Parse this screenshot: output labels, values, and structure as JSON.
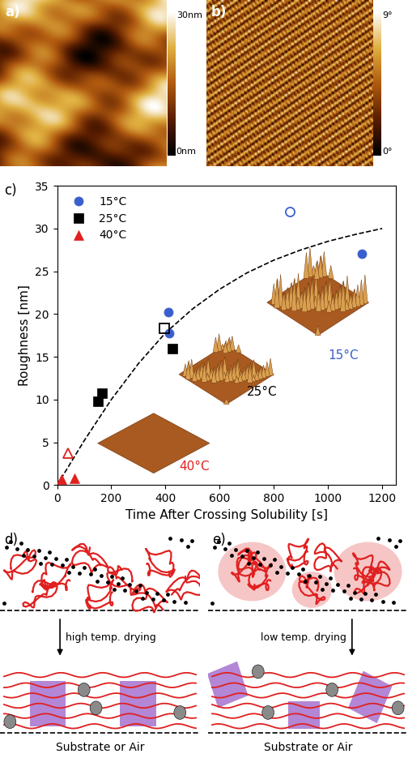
{
  "panels": {
    "a": {
      "label": "a)",
      "scale_max": "30nm",
      "scale_min": "0nm"
    },
    "b": {
      "label": "b)",
      "scale_max": "9°",
      "scale_min": "0°"
    }
  },
  "chart_data": {
    "label": "c)",
    "type": "scatter",
    "xlabel": "Time After Crossing Solubility [s]",
    "ylabel": "Roughness [nm]",
    "xlim": [
      0,
      1250
    ],
    "xticks": [
      0,
      200,
      400,
      600,
      800,
      1000,
      1200
    ],
    "ylim": [
      0,
      35
    ],
    "yticks": [
      0,
      5,
      10,
      15,
      20,
      25,
      30,
      35
    ],
    "legend": "upper left",
    "series": [
      {
        "name": "15°C",
        "color": "#3a5fcd",
        "marker": "circle",
        "x": [
          410,
          415,
          1125
        ],
        "values": [
          20.2,
          17.8,
          27
        ]
      },
      {
        "name": "25°C",
        "color": "#000000",
        "marker": "square",
        "x": [
          150,
          165,
          425
        ],
        "values": [
          9.8,
          10.7,
          16
        ]
      },
      {
        "name": "40°C",
        "color": "#e0201e",
        "marker": "triangle",
        "x": [
          15,
          65
        ],
        "values": [
          0.7,
          0.8
        ]
      },
      {
        "color": "#3a5fcd",
        "marker": "circle_open",
        "x": [
          860
        ],
        "values": [
          32
        ]
      },
      {
        "color": "#000000",
        "marker": "square_open",
        "x": [
          395
        ],
        "values": [
          18.3
        ]
      },
      {
        "color": "#e0201e",
        "marker": "triangle_open",
        "x": [
          40
        ],
        "values": [
          3.7
        ]
      },
      {
        "type": "line",
        "color": "#000000",
        "line_style": "dashed",
        "x": [
          0,
          100,
          200,
          300,
          400,
          500,
          600,
          700,
          800,
          900,
          1000,
          1100,
          1200
        ],
        "values": [
          0,
          5.2,
          10,
          14.2,
          17.8,
          20.6,
          22.9,
          24.8,
          26.3,
          27.5,
          28.5,
          29.3,
          30
        ]
      }
    ],
    "annotations": [
      {
        "text": "40°C",
        "color": "#e0201e"
      },
      {
        "text": "25°C",
        "color": "#000000"
      },
      {
        "text": "15°C",
        "color": "#3a5fcd"
      }
    ]
  },
  "diagrams": {
    "d": {
      "label": "d)",
      "arrow_text": "high temp. drying",
      "substrate": "Substrate or Air"
    },
    "e": {
      "label": "e)",
      "arrow_text": "low temp. drying",
      "substrate": "Substrate or Air"
    }
  }
}
